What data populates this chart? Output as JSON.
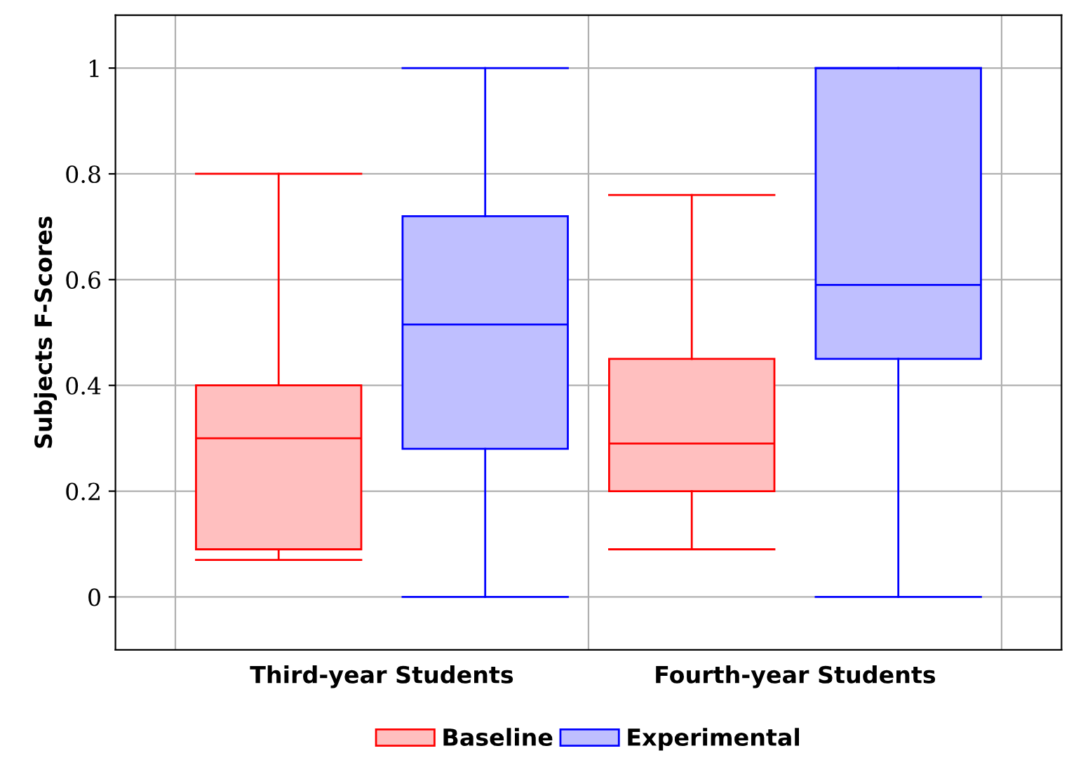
{
  "chart_data": {
    "type": "box",
    "ylabel": "Subjects F-Scores",
    "categories": [
      "Third-year Students",
      "Fourth-year Students"
    ],
    "series": [
      {
        "name": "Baseline",
        "color": "#ff0000",
        "boxes": [
          {
            "low": 0.07,
            "q1": 0.09,
            "median": 0.3,
            "q3": 0.4,
            "high": 0.8
          },
          {
            "low": 0.09,
            "q1": 0.2,
            "median": 0.29,
            "q3": 0.45,
            "high": 0.76
          }
        ]
      },
      {
        "name": "Experimental",
        "color": "#0000ff",
        "boxes": [
          {
            "low": 0,
            "q1": 0.28,
            "median": 0.515,
            "q3": 0.72,
            "high": 1
          },
          {
            "low": 0,
            "q1": 0.45,
            "median": 0.59,
            "q3": 1,
            "high": 1
          }
        ]
      }
    ],
    "ylim": [
      -0.1,
      1.1
    ],
    "yticks": [
      0,
      0.2,
      0.4,
      0.6,
      0.8,
      1
    ],
    "grid": true,
    "legend": "bottom"
  }
}
